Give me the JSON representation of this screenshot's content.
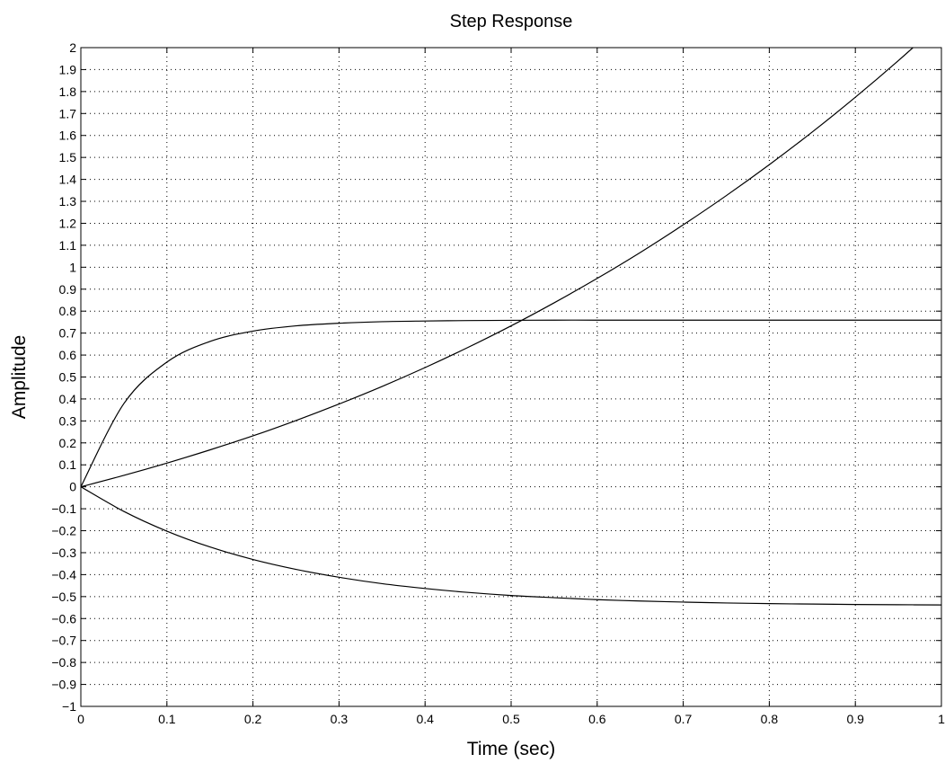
{
  "chart_data": {
    "type": "line",
    "title": "Step Response",
    "xlabel": "Time (sec)",
    "ylabel": "Amplitude",
    "xlim": [
      0,
      1
    ],
    "ylim": [
      -1,
      2
    ],
    "grid": true,
    "x_ticks": [
      0,
      0.1,
      0.2,
      0.3,
      0.4,
      0.5,
      0.6,
      0.7,
      0.8,
      0.9,
      1
    ],
    "x_tick_labels": [
      "0",
      "0.1",
      "0.2",
      "0.3",
      "0.4",
      "0.5",
      "0.6",
      "0.7",
      "0.8",
      "0.9",
      "1"
    ],
    "y_ticks": [
      -1,
      -0.9,
      -0.8,
      -0.7,
      -0.6,
      -0.5,
      -0.4,
      -0.3,
      -0.2,
      -0.1,
      0,
      0.1,
      0.2,
      0.3,
      0.4,
      0.5,
      0.6,
      0.7,
      0.8,
      0.9,
      1,
      1.1,
      1.2,
      1.3,
      1.4,
      1.5,
      1.6,
      1.7,
      1.8,
      1.9,
      2
    ],
    "y_tick_labels": [
      "−1",
      "−0.9",
      "−0.8",
      "−0.7",
      "−0.6",
      "−0.5",
      "−0.4",
      "−0.3",
      "−0.2",
      "−0.1",
      "0",
      "0.1",
      "0.2",
      "0.3",
      "0.4",
      "0.5",
      "0.6",
      "0.7",
      "0.8",
      "0.9",
      "1",
      "1.1",
      "1.2",
      "1.3",
      "1.4",
      "1.5",
      "1.6",
      "1.7",
      "1.8",
      "1.9",
      "2"
    ],
    "x": [
      0,
      0.05,
      0.1,
      0.15,
      0.2,
      0.25,
      0.3,
      0.35,
      0.4,
      0.45,
      0.5,
      0.55,
      0.6,
      0.65,
      0.7,
      0.75,
      0.8,
      0.85,
      0.9,
      0.95,
      1
    ],
    "series": [
      {
        "color": "#000000",
        "values": [
          0,
          0.379,
          0.568,
          0.662,
          0.709,
          0.733,
          0.745,
          0.752,
          0.755,
          0.757,
          0.758,
          0.759,
          0.759,
          0.759,
          0.759,
          0.759,
          0.759,
          0.759,
          0.759,
          0.759,
          0.759
        ]
      },
      {
        "color": "#000000",
        "values": [
          0,
          0.052,
          0.108,
          0.168,
          0.232,
          0.302,
          0.377,
          0.457,
          0.543,
          0.635,
          0.733,
          0.838,
          0.949,
          1.067,
          1.193,
          1.326,
          1.467,
          1.616,
          1.774,
          1.941,
          2.117
        ]
      },
      {
        "color": "#000000",
        "values": [
          0,
          -0.112,
          -0.202,
          -0.274,
          -0.331,
          -0.376,
          -0.412,
          -0.441,
          -0.463,
          -0.481,
          -0.495,
          -0.505,
          -0.514,
          -0.52,
          -0.525,
          -0.529,
          -0.532,
          -0.534,
          -0.536,
          -0.537,
          -0.538
        ]
      }
    ]
  }
}
